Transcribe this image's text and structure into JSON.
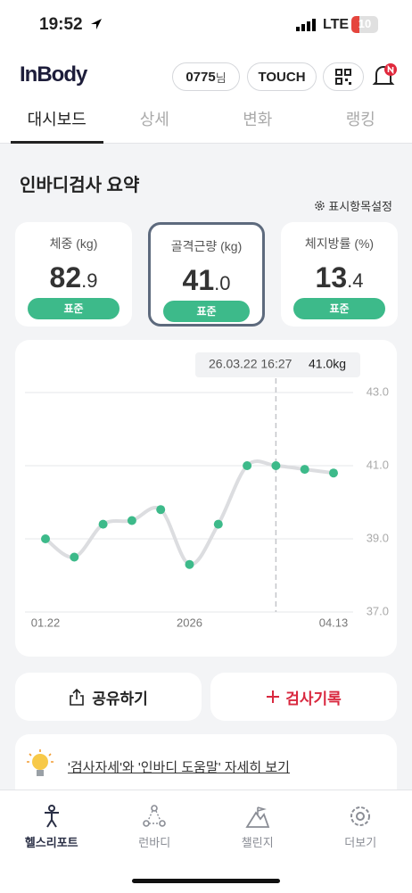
{
  "status_bar": {
    "time": "19:52",
    "network": "LTE",
    "battery": "10"
  },
  "header": {
    "logo": "InBody",
    "user_id": "0775",
    "honorific": "님",
    "touch": "TOUCH"
  },
  "tabs": [
    "대시보드",
    "상세",
    "변화",
    "랭킹"
  ],
  "active_tab": 0,
  "section_title": "인바디검사 요약",
  "settings_link": "표시항목설정",
  "cards": [
    {
      "label": "체중 (kg)",
      "value": 82.9,
      "status": "표준"
    },
    {
      "label": "골격근량 (kg)",
      "value": 41.0,
      "value_label": "41.0",
      "status": "표준"
    },
    {
      "label": "체지방률 (%)",
      "value": 13.4,
      "status": "표준"
    }
  ],
  "selected_card": 1,
  "chart_data": {
    "type": "line",
    "categories": [
      "01.22",
      null,
      null,
      null,
      null,
      "2026",
      null,
      null,
      null,
      null,
      "04.13"
    ],
    "values": [
      39.0,
      38.5,
      39.4,
      39.5,
      39.8,
      38.3,
      39.4,
      41.0,
      41.0,
      40.9,
      40.8
    ],
    "color": "#3dba8a",
    "line_color": "#dcdde0",
    "ylim": [
      37,
      43
    ],
    "yticks": [
      {
        "value": 37,
        "label": "37.0"
      },
      {
        "value": 39,
        "label": "39.0"
      },
      {
        "value": 41,
        "label": "41.0"
      },
      {
        "value": 43,
        "label": "43.0"
      }
    ],
    "grid": true,
    "selected_index": 8,
    "tooltip": {
      "date": "26.03.22 16:27",
      "value_label": "41.0kg"
    }
  },
  "buttons": {
    "share": "공유하기",
    "record": "검사기록"
  },
  "tip": "'검사자세'와 '인바디 도움말' 자세히 보기",
  "nav": [
    "헬스리포트",
    "런바디",
    "챌린지",
    "더보기"
  ],
  "active_nav": 0
}
